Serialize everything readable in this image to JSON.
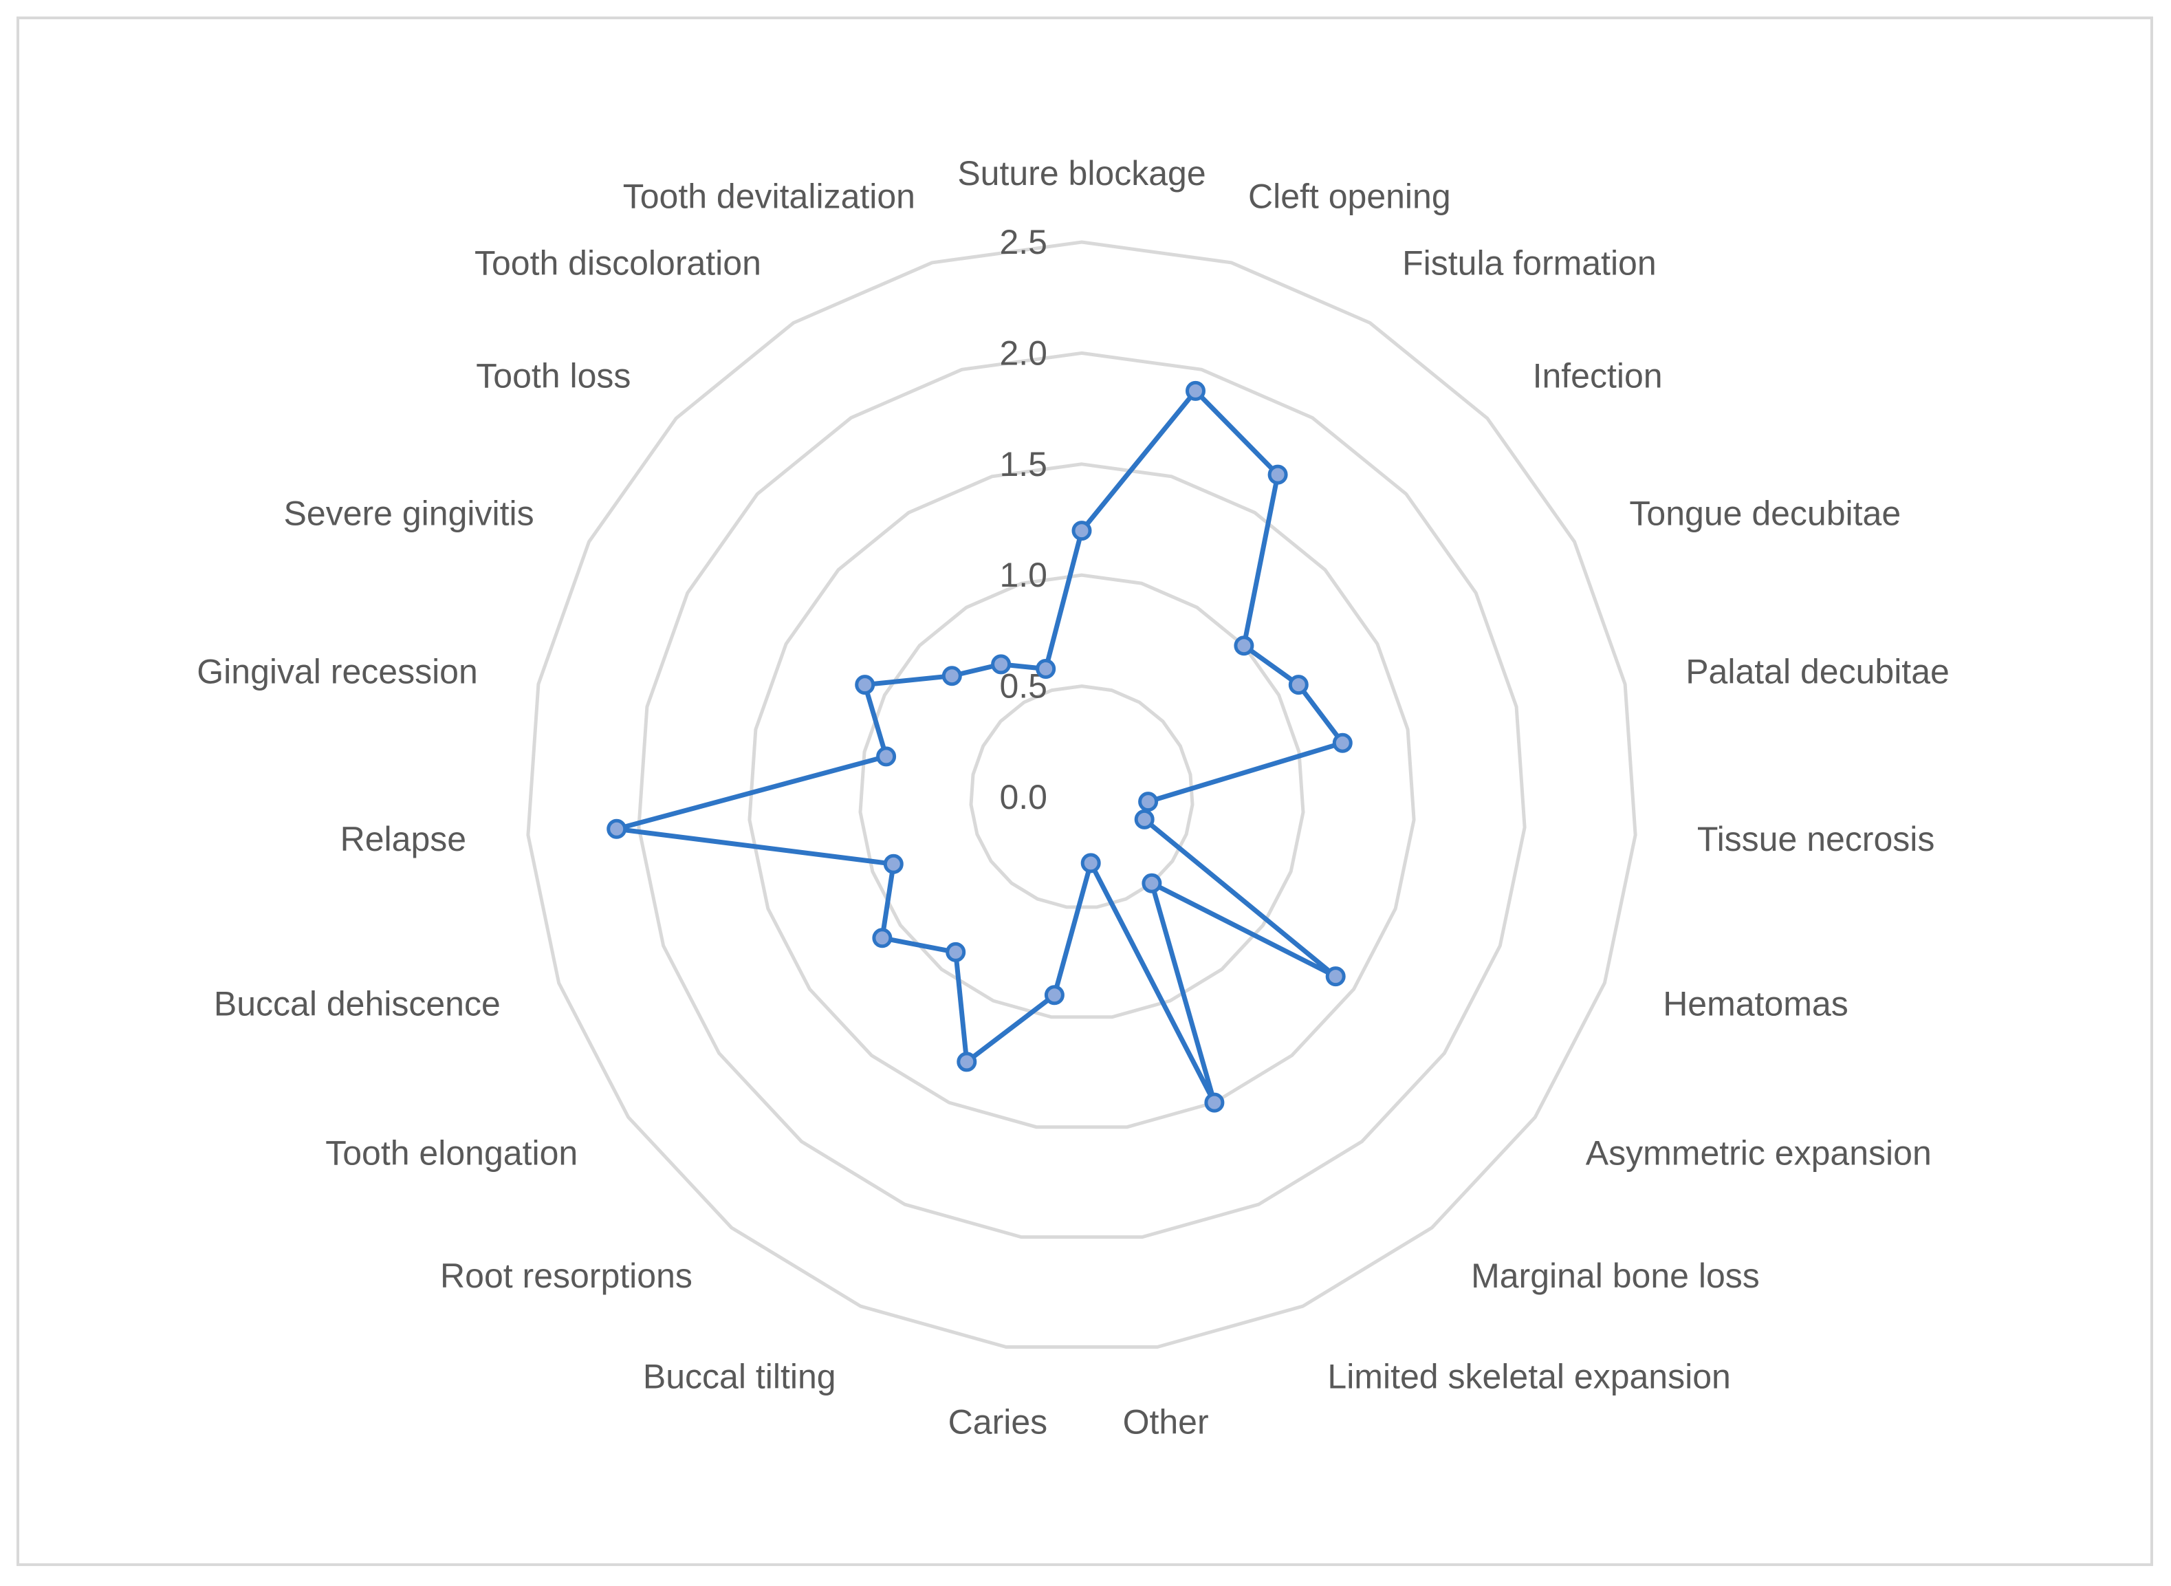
{
  "chart_data": {
    "type": "radar",
    "title": "",
    "categories": [
      "Suture blockage",
      "Cleft opening",
      "Fistula formation",
      "Infection",
      "Tongue decubitae",
      "Palatal decubitae",
      "Tissue necrosis",
      "Hematomas",
      "Asymmetric expansion",
      "Marginal bone loss",
      "Limited skeletal expansion",
      "Other",
      "Caries",
      "Buccal tilting",
      "Root resorptions",
      "Tooth elongation",
      "Buccal dehiscence",
      "Relapse",
      "Gingival recession",
      "Severe gingivitis",
      "Tooth loss",
      "Tooth discoloration",
      "Tooth devitalization"
    ],
    "series": [
      {
        "values": [
          1.2,
          1.9,
          1.7,
          1.0,
          1.1,
          1.2,
          0.3,
          0.3,
          1.4,
          0.5,
          1.5,
          0.3,
          0.9,
          1.3,
          0.9,
          1.1,
          0.9,
          2.1,
          0.9,
          1.1,
          0.8,
          0.7,
          0.6
        ],
        "color": "#2e75c6",
        "marker_fill": "#8faadc"
      }
    ],
    "rlim": [
      0,
      2.5
    ],
    "ticks": [
      "0.0",
      "0.5",
      "1.0",
      "1.5",
      "2.0",
      "2.5"
    ],
    "grid": true,
    "grid_color": "#d9d9d9",
    "legend": "none"
  }
}
